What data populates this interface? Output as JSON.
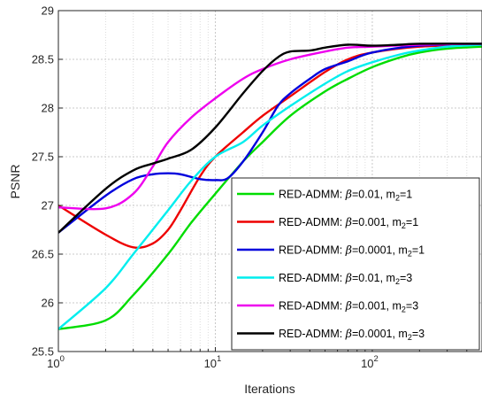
{
  "chart_data": {
    "type": "line",
    "xscale": "log",
    "xlim": [
      1,
      500
    ],
    "ylim": [
      25.5,
      29
    ],
    "xlabel": "Iterations",
    "ylabel": "PSNR",
    "xticks": [
      {
        "value": 1,
        "base": "10",
        "exp": "0"
      },
      {
        "value": 10,
        "base": "10",
        "exp": "1"
      },
      {
        "value": 100,
        "base": "10",
        "exp": "2"
      }
    ],
    "yticks": [
      "25.5",
      "26",
      "26.5",
      "27",
      "27.5",
      "28",
      "28.5",
      "29"
    ],
    "grid": "dotted, major and minor x",
    "legend_position": "lower-right",
    "series": [
      {
        "name": "RED-ADMM: β=0.01,    m2=1",
        "label_prefix": "RED-ADMM: ",
        "label_beta": "β",
        "label_mid": "=0.01,    m",
        "label_sub": "2",
        "label_end": "=1",
        "color": "#00dd00",
        "points": [
          [
            1,
            25.73
          ],
          [
            2,
            25.82
          ],
          [
            3,
            26.08
          ],
          [
            5,
            26.5
          ],
          [
            7,
            26.82
          ],
          [
            10,
            27.12
          ],
          [
            15,
            27.45
          ],
          [
            20,
            27.65
          ],
          [
            30,
            27.92
          ],
          [
            50,
            28.17
          ],
          [
            70,
            28.3
          ],
          [
            100,
            28.42
          ],
          [
            150,
            28.52
          ],
          [
            200,
            28.57
          ],
          [
            300,
            28.61
          ],
          [
            500,
            28.63
          ]
        ]
      },
      {
        "name": "RED-ADMM: β=0.001,   m2=1",
        "label_prefix": "RED-ADMM: ",
        "label_beta": "β",
        "label_mid": "=0.001,   m",
        "label_sub": "2",
        "label_end": "=1",
        "color": "#ee0000",
        "points": [
          [
            1,
            27.0
          ],
          [
            2,
            26.7
          ],
          [
            3,
            26.57
          ],
          [
            4,
            26.61
          ],
          [
            5,
            26.75
          ],
          [
            6,
            26.95
          ],
          [
            8,
            27.3
          ],
          [
            10,
            27.5
          ],
          [
            15,
            27.75
          ],
          [
            20,
            27.92
          ],
          [
            30,
            28.12
          ],
          [
            50,
            28.37
          ],
          [
            70,
            28.5
          ],
          [
            100,
            28.57
          ],
          [
            200,
            28.63
          ],
          [
            500,
            28.65
          ]
        ]
      },
      {
        "name": "RED-ADMM: β=0.0001, m2=1",
        "label_prefix": "RED-ADMM: ",
        "label_beta": "β",
        "label_mid": "=0.0001, m",
        "label_sub": "2",
        "label_end": "=1",
        "color": "#0000dd",
        "points": [
          [
            1,
            26.72
          ],
          [
            2,
            27.1
          ],
          [
            3,
            27.27
          ],
          [
            4,
            27.32
          ],
          [
            5,
            27.33
          ],
          [
            6,
            27.32
          ],
          [
            8,
            27.27
          ],
          [
            10,
            27.26
          ],
          [
            12,
            27.28
          ],
          [
            15,
            27.45
          ],
          [
            20,
            27.75
          ],
          [
            25,
            28.02
          ],
          [
            30,
            28.15
          ],
          [
            40,
            28.3
          ],
          [
            50,
            28.4
          ],
          [
            70,
            28.48
          ],
          [
            100,
            28.57
          ],
          [
            200,
            28.64
          ],
          [
            500,
            28.66
          ]
        ]
      },
      {
        "name": "RED-ADMM: β=0.01,    m2=3",
        "label_prefix": "RED-ADMM: ",
        "label_beta": "β",
        "label_mid": "=0.01,    m",
        "label_sub": "2",
        "label_end": "=3",
        "color": "#00eeee",
        "points": [
          [
            1,
            25.73
          ],
          [
            2,
            26.15
          ],
          [
            3,
            26.5
          ],
          [
            5,
            26.95
          ],
          [
            7,
            27.25
          ],
          [
            10,
            27.5
          ],
          [
            15,
            27.65
          ],
          [
            20,
            27.82
          ],
          [
            30,
            28.02
          ],
          [
            50,
            28.25
          ],
          [
            70,
            28.38
          ],
          [
            100,
            28.47
          ],
          [
            150,
            28.55
          ],
          [
            200,
            28.59
          ],
          [
            300,
            28.63
          ],
          [
            500,
            28.65
          ]
        ]
      },
      {
        "name": "RED-ADMM: β=0.001,   m2=3",
        "label_prefix": "RED-ADMM: ",
        "label_beta": "β",
        "label_mid": "=0.001,   m",
        "label_sub": "2",
        "label_end": "=3",
        "color": "#ee00ee",
        "points": [
          [
            1,
            26.98
          ],
          [
            2,
            26.97
          ],
          [
            3,
            27.12
          ],
          [
            4,
            27.4
          ],
          [
            5,
            27.65
          ],
          [
            7,
            27.9
          ],
          [
            10,
            28.1
          ],
          [
            15,
            28.3
          ],
          [
            20,
            28.4
          ],
          [
            30,
            28.5
          ],
          [
            50,
            28.58
          ],
          [
            70,
            28.62
          ],
          [
            100,
            28.63
          ],
          [
            200,
            28.65
          ],
          [
            500,
            28.66
          ]
        ]
      },
      {
        "name": "RED-ADMM: β=0.0001, m2=3",
        "label_prefix": "RED-ADMM: ",
        "label_beta": "β",
        "label_mid": "=0.0001, m",
        "label_sub": "2",
        "label_end": "=3",
        "color": "#000000",
        "points": [
          [
            1,
            26.72
          ],
          [
            2,
            27.17
          ],
          [
            3,
            27.36
          ],
          [
            4,
            27.43
          ],
          [
            5,
            27.48
          ],
          [
            7,
            27.57
          ],
          [
            10,
            27.8
          ],
          [
            15,
            28.15
          ],
          [
            20,
            28.38
          ],
          [
            25,
            28.52
          ],
          [
            30,
            28.58
          ],
          [
            40,
            28.59
          ],
          [
            50,
            28.62
          ],
          [
            70,
            28.65
          ],
          [
            100,
            28.64
          ],
          [
            150,
            28.65
          ],
          [
            200,
            28.66
          ],
          [
            500,
            28.66
          ]
        ]
      }
    ]
  }
}
